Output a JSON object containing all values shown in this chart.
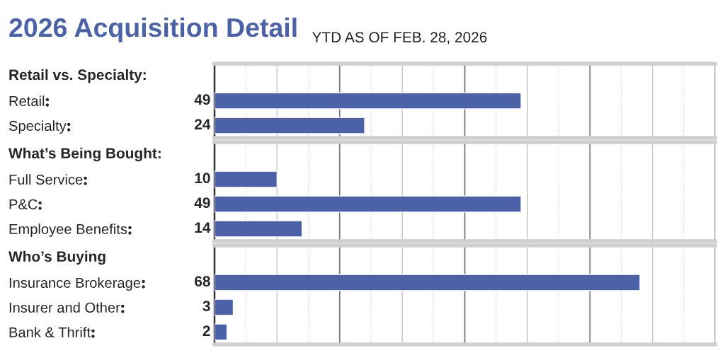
{
  "chart_data": [
    {
      "type": "bar",
      "orientation": "horizontal",
      "title": "2026 Acquisition Detail",
      "subtitle": "YTD AS OF FEB. 28, 2026",
      "ylabel": "Retail vs. Specialty:",
      "categories": [
        "Retail",
        "Specialty"
      ],
      "values": [
        49,
        24
      ],
      "color": "#4c62a8",
      "data_labels": true,
      "xlim": [
        0,
        80
      ],
      "xticks": [
        {
          "value": 0,
          "label": null
        },
        {
          "value": 5,
          "label": null
        },
        {
          "value": 10,
          "label": null
        },
        {
          "value": 15,
          "label": null
        },
        {
          "value": 20,
          "label": null
        },
        {
          "value": 25,
          "label": null
        },
        {
          "value": 30,
          "label": null
        },
        {
          "value": 35,
          "label": null
        },
        {
          "value": 40,
          "label": null
        },
        {
          "value": 45,
          "label": null
        },
        {
          "value": 50,
          "label": null
        },
        {
          "value": 55,
          "label": null
        },
        {
          "value": 60,
          "label": null
        },
        {
          "value": 65,
          "label": null
        },
        {
          "value": 70,
          "label": null
        },
        {
          "value": 75,
          "label": null
        },
        {
          "value": 80,
          "label": null
        }
      ],
      "grid": "x",
      "tick_labels": "y"
    },
    {
      "type": "bar",
      "orientation": "horizontal",
      "ylabel": "What’s Being Bought:",
      "categories": [
        "Full Service",
        "P&C",
        "Employee Benefits"
      ],
      "values": [
        10,
        49,
        14
      ],
      "color": "#4c62a8",
      "data_labels": true,
      "xlim": [
        0,
        80
      ],
      "xticks": [
        {
          "value": 0,
          "label": null
        },
        {
          "value": 5,
          "label": null
        },
        {
          "value": 10,
          "label": null
        },
        {
          "value": 15,
          "label": null
        },
        {
          "value": 20,
          "label": null
        },
        {
          "value": 25,
          "label": null
        },
        {
          "value": 30,
          "label": null
        },
        {
          "value": 35,
          "label": null
        },
        {
          "value": 40,
          "label": null
        },
        {
          "value": 45,
          "label": null
        },
        {
          "value": 50,
          "label": null
        },
        {
          "value": 55,
          "label": null
        },
        {
          "value": 60,
          "label": null
        },
        {
          "value": 65,
          "label": null
        },
        {
          "value": 70,
          "label": null
        },
        {
          "value": 75,
          "label": null
        },
        {
          "value": 80,
          "label": null
        }
      ],
      "grid": "x",
      "tick_labels": "y"
    },
    {
      "type": "bar",
      "orientation": "horizontal",
      "ylabel": "Who’s Buying",
      "categories": [
        "Insurance Brokerage",
        "Insurer and Other",
        "Bank & Thrift"
      ],
      "values": [
        68,
        3,
        2
      ],
      "color": "#4c62a8",
      "data_labels": true,
      "xlim": [
        0,
        80
      ],
      "xticks": [
        {
          "value": 0,
          "label": null
        },
        {
          "value": 5,
          "label": null
        },
        {
          "value": 10,
          "label": null
        },
        {
          "value": 15,
          "label": null
        },
        {
          "value": 20,
          "label": null
        },
        {
          "value": 25,
          "label": null
        },
        {
          "value": 30,
          "label": null
        },
        {
          "value": 35,
          "label": null
        },
        {
          "value": 40,
          "label": null
        },
        {
          "value": 45,
          "label": null
        },
        {
          "value": 50,
          "label": null
        },
        {
          "value": 55,
          "label": null
        },
        {
          "value": 60,
          "label": null
        },
        {
          "value": 65,
          "label": null
        },
        {
          "value": 70,
          "label": null
        },
        {
          "value": 75,
          "label": null
        },
        {
          "value": 80,
          "label": null
        }
      ],
      "grid": "x",
      "tick_labels": "y"
    }
  ]
}
